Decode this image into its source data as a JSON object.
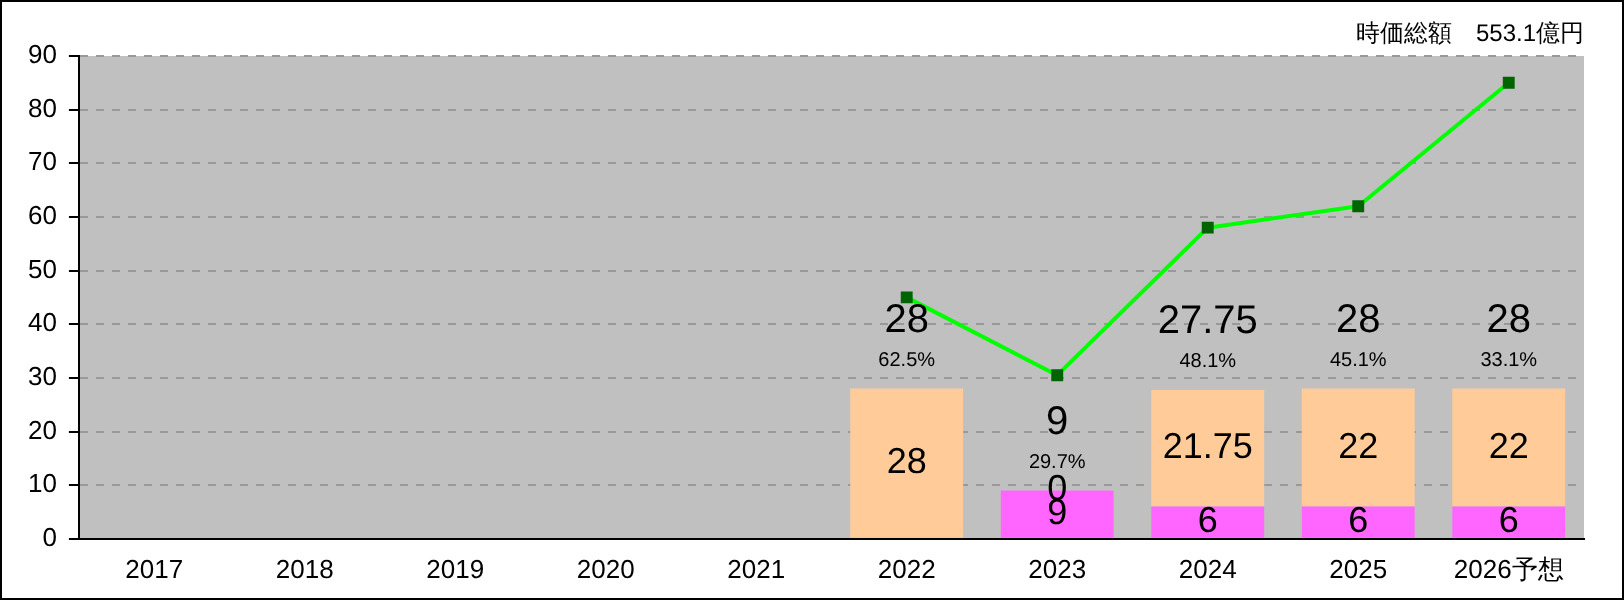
{
  "chart_data": {
    "type": "bar",
    "stacked": true,
    "categories": [
      "2017",
      "2018",
      "2019",
      "2020",
      "2021",
      "2022",
      "2023",
      "2024",
      "2025",
      "2026予想"
    ],
    "series": [
      {
        "color": "#ff66ff",
        "values": [
          null,
          null,
          null,
          null,
          null,
          null,
          9,
          6,
          6,
          6
        ],
        "value_labels": [
          null,
          null,
          null,
          null,
          null,
          null,
          "9",
          "6",
          "6",
          "6"
        ]
      },
      {
        "color": "#ffcc99",
        "values": [
          null,
          null,
          null,
          null,
          null,
          28,
          0,
          21.75,
          22,
          22
        ],
        "value_labels": [
          null,
          null,
          null,
          null,
          null,
          "28",
          "0",
          "21.75",
          "22",
          "22"
        ]
      },
      {
        "type": "line",
        "color": "#00ff00",
        "values": [
          null,
          null,
          null,
          null,
          null,
          45,
          30.5,
          58,
          62,
          85
        ]
      }
    ],
    "totals": [
      null,
      null,
      null,
      null,
      null,
      "28",
      "9",
      "27.75",
      "28",
      "28"
    ],
    "annotations": [
      "時価総額　553.1億円",
      {
        "text": "62.5%",
        "x": "2022",
        "y": 28
      },
      {
        "text": "29.7%",
        "x": "2023",
        "y": 9
      },
      {
        "text": "48.1%",
        "x": "2024",
        "y": 27.75
      },
      {
        "text": "45.1%",
        "x": "2025",
        "y": 28
      },
      {
        "text": "33.1%",
        "x": "2026予想",
        "y": 28
      }
    ],
    "ylim": [
      0,
      90
    ],
    "yticks": [
      0,
      10,
      20,
      30,
      40,
      50,
      60,
      70,
      80,
      90
    ],
    "grid": "y",
    "legend": false,
    "marker": "square",
    "line_style": "solid"
  }
}
